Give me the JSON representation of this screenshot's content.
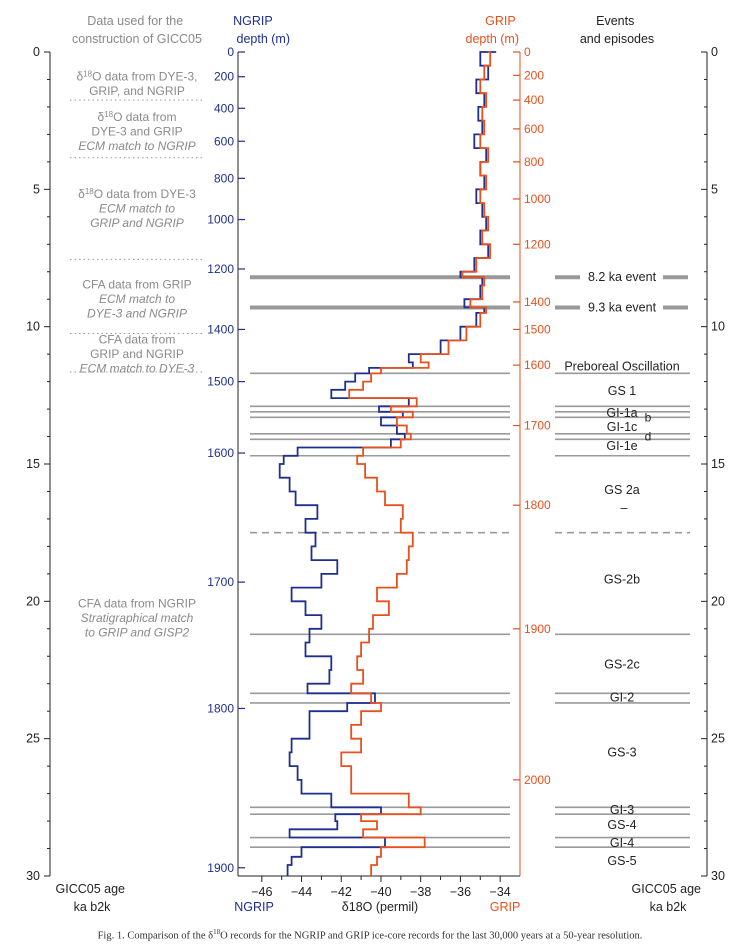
{
  "chart_data": {
    "type": "line",
    "left_column": {
      "header": [
        "Data used for the",
        "construction of GICC05"
      ],
      "items": [
        {
          "lines": [
            "δ18O data from DYE-3,",
            "GRIP, and NGRIP"
          ],
          "italic_from": 99,
          "age": 1.15
        },
        {
          "lines": [
            "δ18O data from",
            "DYE-3 and GRIP",
            "ECM match to NGRIP"
          ],
          "italic_from": 2,
          "age": 2.9
        },
        {
          "lines": [
            "δ18O data from DYE-3",
            "ECM match to",
            "GRIP and NGRIP"
          ],
          "italic_from": 1,
          "age": 5.7
        },
        {
          "lines": [
            "CFA data from GRIP",
            "ECM match to",
            "DYE-3 and NGRIP"
          ],
          "italic_from": 1,
          "age": 9.0
        },
        {
          "lines": [
            "CFA data from",
            "GRIP and NGRIP",
            "ECM match to DYE-3"
          ],
          "italic_from": 2,
          "age": 11.0
        },
        {
          "lines": [
            "CFA data from NGRIP",
            "Stratigraphical match",
            "to GRIP and GISP2"
          ],
          "italic_from": 1,
          "age": 20.6
        }
      ],
      "dotted_separators_age": [
        1.75,
        3.85,
        7.55,
        10.25,
        11.65
      ]
    },
    "left_axis": {
      "title": [
        "GICC05 age",
        "ka b2k"
      ],
      "ticks": [
        0,
        5,
        10,
        15,
        20,
        25,
        30
      ]
    },
    "right_axis": {
      "title": [
        "GICC05 age",
        "ka b2k"
      ],
      "ticks": [
        0,
        5,
        10,
        15,
        20,
        25,
        30
      ]
    },
    "ngrip_depth_axis": {
      "title": [
        "NGRIP",
        "depth (m)"
      ],
      "ticks": [
        {
          "depth": "0",
          "age": 0
        },
        {
          "depth": "200",
          "age": 0.9
        },
        {
          "depth": "400",
          "age": 2.05
        },
        {
          "depth": "600",
          "age": 3.25
        },
        {
          "depth": "800",
          "age": 4.6
        },
        {
          "depth": "1000",
          "age": 6.1
        },
        {
          "depth": "1200",
          "age": 7.9
        },
        {
          "depth": "1400",
          "age": 10.1
        },
        {
          "depth": "1500",
          "age": 12.0
        },
        {
          "depth": "1600",
          "age": 14.6
        },
        {
          "depth": "1700",
          "age": 19.3
        },
        {
          "depth": "1800",
          "age": 23.9
        },
        {
          "depth": "1900",
          "age": 29.7
        }
      ]
    },
    "grip_depth_axis": {
      "title": [
        "GRIP",
        "depth (m)"
      ],
      "ticks": [
        {
          "depth": "0",
          "age": 0
        },
        {
          "depth": "200",
          "age": 0.85
        },
        {
          "depth": "400",
          "age": 1.75
        },
        {
          "depth": "600",
          "age": 2.8
        },
        {
          "depth": "800",
          "age": 4.0
        },
        {
          "depth": "1000",
          "age": 5.35
        },
        {
          "depth": "1200",
          "age": 7.0
        },
        {
          "depth": "1400",
          "age": 9.1
        },
        {
          "depth": "1500",
          "age": 10.1
        },
        {
          "depth": "1600",
          "age": 11.4
        },
        {
          "depth": "1700",
          "age": 13.6
        },
        {
          "depth": "1800",
          "age": 16.5
        },
        {
          "depth": "1900",
          "age": 21.0
        },
        {
          "depth": "2000",
          "age": 26.5
        }
      ]
    },
    "x_axis": {
      "label": "δ18O (permil)",
      "left_label": "NGRIP",
      "right_label": "GRIP",
      "ticks": [
        -46,
        -44,
        -42,
        -40,
        -38,
        -36,
        -34
      ],
      "range": [
        -47.2,
        -33.0
      ]
    },
    "events_header": [
      "Events",
      "and episodes"
    ],
    "event_lines": [
      {
        "age": 8.2,
        "thick": true
      },
      {
        "age": 9.3,
        "thick": true
      },
      {
        "age": 11.7
      },
      {
        "age": 12.9
      },
      {
        "age": 13.1
      },
      {
        "age": 13.3
      },
      {
        "age": 13.9
      },
      {
        "age": 14.1
      },
      {
        "age": 14.7
      },
      {
        "age": 17.5,
        "dashed": true
      },
      {
        "age": 21.2
      },
      {
        "age": 23.35
      },
      {
        "age": 23.7
      },
      {
        "age": 27.5
      },
      {
        "age": 27.75
      },
      {
        "age": 28.6
      },
      {
        "age": 28.95
      }
    ],
    "event_labels": [
      {
        "text": "8.2 ka event",
        "age": 8.2
      },
      {
        "text": "9.3 ka event",
        "age": 9.3
      },
      {
        "text": "Preboreal Oscillation",
        "age": 11.45
      },
      {
        "text": "GS  1",
        "age": 12.35
      },
      {
        "text": "GI-1a",
        "age": 13.15
      },
      {
        "text": "b",
        "age": 13.3
      },
      {
        "text": "GI-1c",
        "age": 13.65
      },
      {
        "text": "d",
        "age": 14.0
      },
      {
        "text": "GI-1e",
        "age": 14.35
      },
      {
        "text": "GS  2a",
        "age": 15.95
      },
      {
        "text": "–",
        "age": 16.6
      },
      {
        "text": "GS-2b",
        "age": 19.2
      },
      {
        "text": "GS-2c",
        "age": 22.3
      },
      {
        "text": "GI-2",
        "age": 23.5
      },
      {
        "text": "GS-3",
        "age": 25.5
      },
      {
        "text": "GI-3",
        "age": 27.6
      },
      {
        "text": "GS-4",
        "age": 28.15
      },
      {
        "text": "GI-4",
        "age": 28.8
      },
      {
        "text": "GS-5",
        "age": 29.45
      }
    ],
    "series": [
      {
        "name": "NGRIP",
        "color": "#1e2f8f",
        "ages": [
          0,
          0.5,
          1,
          1.5,
          2,
          2.5,
          3,
          3.5,
          4,
          4.5,
          5,
          5.5,
          6,
          6.5,
          7,
          7.5,
          8,
          8.2,
          8.5,
          9,
          9.3,
          9.5,
          10,
          10.5,
          11,
          11.3,
          11.5,
          11.7,
          12,
          12.3,
          12.6,
          12.9,
          13.1,
          13.3,
          13.6,
          13.9,
          14.1,
          14.4,
          14.7,
          15,
          15.5,
          16,
          16.5,
          17,
          17.5,
          18,
          18.5,
          19,
          19.5,
          20,
          20.5,
          21,
          21.5,
          22,
          22.5,
          23,
          23.35,
          23.7,
          24,
          24.5,
          25,
          25.5,
          26,
          26.5,
          27,
          27.5,
          27.75,
          28,
          28.3,
          28.6,
          28.95,
          29.3,
          29.6,
          30
        ],
        "d18O": [
          -34.2,
          -35.0,
          -34.6,
          -35.2,
          -34.8,
          -35.1,
          -34.9,
          -35.3,
          -34.7,
          -35.0,
          -34.8,
          -35.2,
          -34.9,
          -34.7,
          -35.0,
          -34.6,
          -35.3,
          -36.0,
          -34.9,
          -35.0,
          -35.8,
          -34.8,
          -35.2,
          -36.0,
          -37.0,
          -38.6,
          -38.4,
          -40.6,
          -41.3,
          -41.8,
          -42.5,
          -38.6,
          -40.1,
          -38.9,
          -40.0,
          -39.2,
          -38.8,
          -39.5,
          -44.2,
          -44.9,
          -45.1,
          -44.6,
          -44.3,
          -43.2,
          -43.8,
          -43.3,
          -43.5,
          -42.2,
          -43.0,
          -44.5,
          -43.8,
          -43.0,
          -43.6,
          -43.8,
          -42.5,
          -42.6,
          -43.7,
          -40.3,
          -41.7,
          -43.6,
          -43.6,
          -44.5,
          -44.6,
          -44.2,
          -44.0,
          -42.5,
          -40.0,
          -42.3,
          -42.2,
          -44.6,
          -39.8,
          -44.0,
          -44.5,
          -44.7
        ]
      },
      {
        "name": "GRIP",
        "color": "#e8501e",
        "ages": [
          0,
          0.5,
          1,
          1.5,
          2,
          2.5,
          3,
          3.5,
          4,
          4.5,
          5,
          5.5,
          6,
          6.5,
          7,
          7.5,
          8,
          8.2,
          8.5,
          9,
          9.3,
          9.5,
          10,
          10.5,
          11,
          11.3,
          11.5,
          11.7,
          12,
          12.3,
          12.6,
          12.9,
          13.1,
          13.3,
          13.6,
          13.9,
          14.1,
          14.4,
          14.7,
          15,
          15.5,
          16,
          16.5,
          17,
          17.5,
          18,
          18.5,
          19,
          19.5,
          20,
          20.5,
          21,
          21.5,
          22,
          22.5,
          23,
          23.35,
          23.7,
          24,
          24.5,
          25,
          25.5,
          26,
          26.5,
          27,
          27.5,
          27.75,
          28,
          28.3,
          28.6,
          28.95,
          29.3,
          29.6,
          30
        ],
        "d18O": [
          -34.6,
          -34.5,
          -34.8,
          -35.0,
          -34.7,
          -34.9,
          -34.8,
          -35.0,
          -34.6,
          -35.0,
          -34.7,
          -35.0,
          -34.8,
          -34.6,
          -34.9,
          -34.5,
          -35.2,
          -35.9,
          -34.8,
          -34.9,
          -35.5,
          -34.7,
          -35.0,
          -35.7,
          -36.6,
          -38.0,
          -37.6,
          -40.0,
          -40.5,
          -40.9,
          -41.6,
          -38.2,
          -39.5,
          -38.4,
          -39.2,
          -38.7,
          -38.5,
          -39.0,
          -40.9,
          -41.2,
          -40.8,
          -40.2,
          -39.8,
          -38.9,
          -39.0,
          -38.4,
          -38.6,
          -38.7,
          -39.2,
          -40.2,
          -39.6,
          -40.4,
          -40.6,
          -41.0,
          -41.2,
          -40.9,
          -41.5,
          -40.5,
          -40.0,
          -41.0,
          -41.5,
          -41.0,
          -42.0,
          -41.5,
          -41.5,
          -38.6,
          -38.0,
          -41.0,
          -40.2,
          -40.9,
          -37.8,
          -40.0,
          -40.2,
          -40.5
        ]
      }
    ]
  },
  "caption": "Fig. 1. Comparison of the δ18O records for the NGRIP and GRIP ice-core records for the last 30,000 years at a 50-year resolution."
}
